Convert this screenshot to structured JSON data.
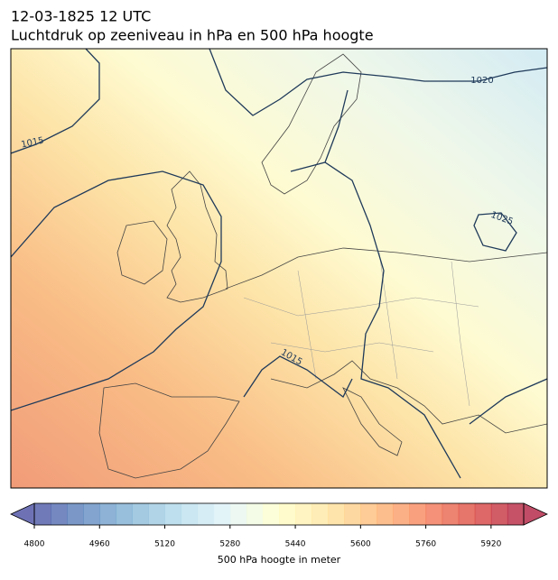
{
  "header": {
    "title": "12-03-1825 12 UTC",
    "subtitle": "Luchtdruk op zeeniveau in hPa en 500 hPa hoogte"
  },
  "map": {
    "isobar_labels": [
      1015,
      1020,
      1025,
      1015
    ]
  },
  "colorbar": {
    "label": "500 hPa hoogte in meter",
    "clim": [
      4800,
      6000
    ],
    "level_step": 40,
    "ticks": [
      4800,
      4960,
      5120,
      5280,
      5440,
      5600,
      5760,
      5920
    ],
    "colors": [
      "#313695",
      "#4575b4",
      "#74add1",
      "#abd9e9",
      "#e0f3f8",
      "#ffffbf",
      "#fee090",
      "#fdae61",
      "#f46d43",
      "#d73027",
      "#a50026"
    ],
    "alpha": 0.7,
    "extend": "both"
  }
}
